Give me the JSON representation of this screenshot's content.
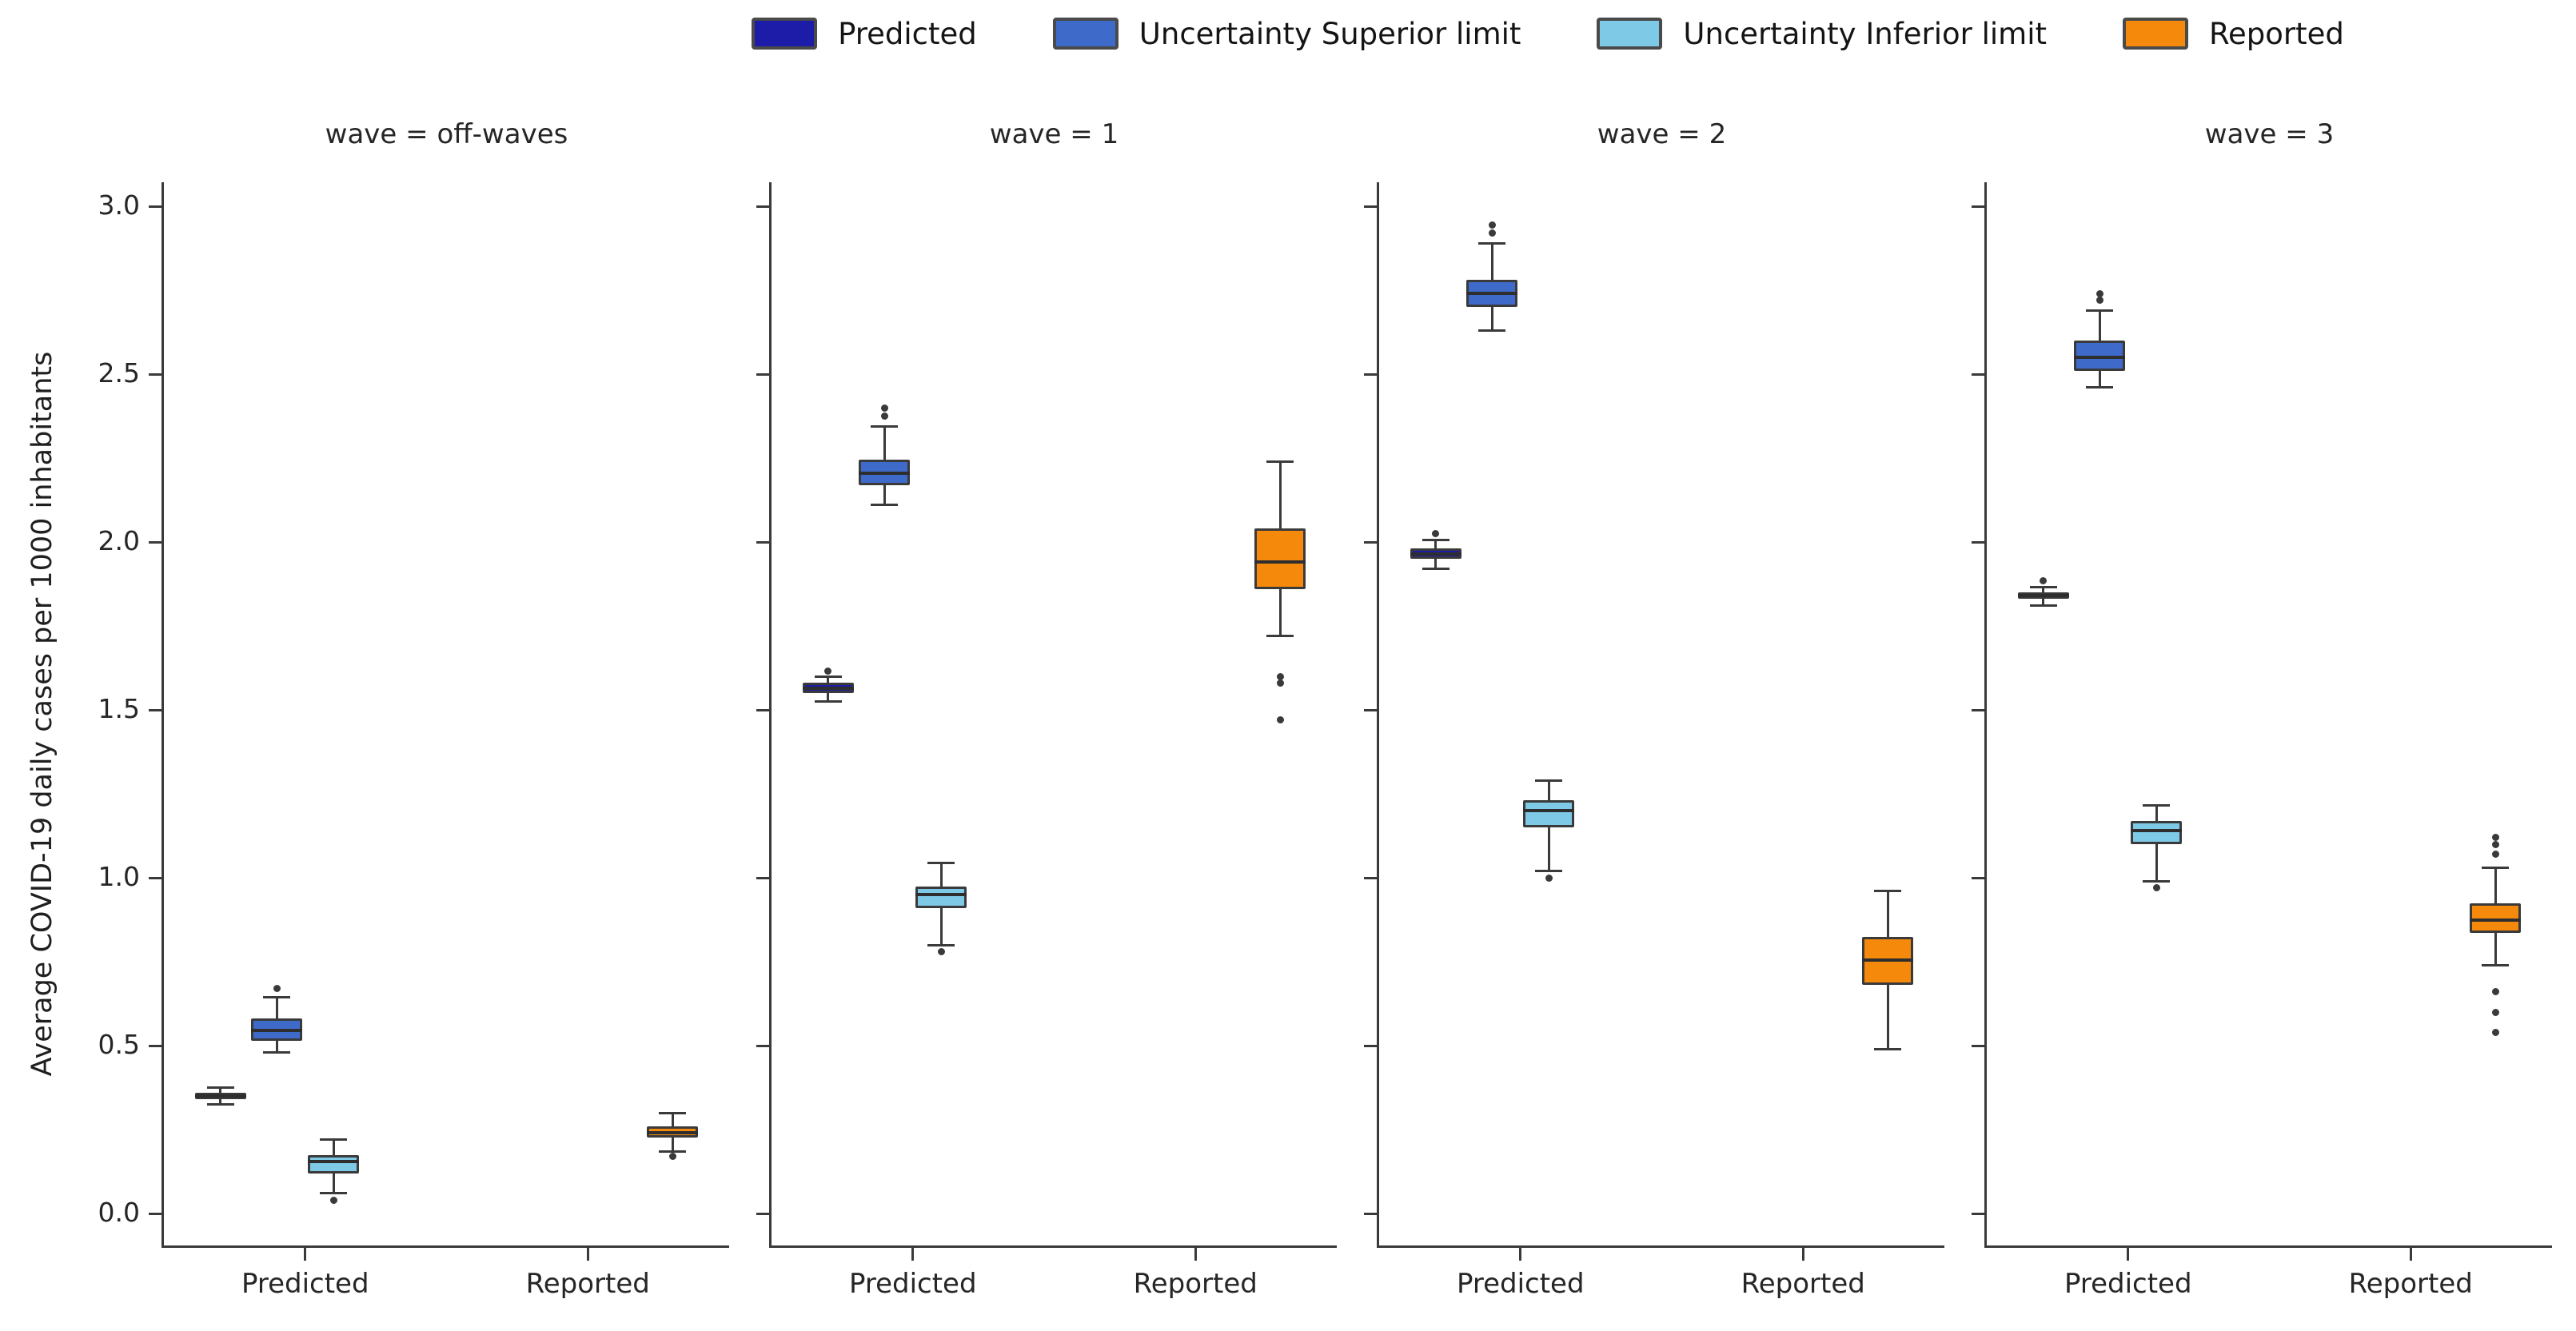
{
  "figure": {
    "y_axis": {
      "label": "Average COVID-19 daily cases per 1000 inhabitants",
      "ticks": [
        "3.0",
        "2.5",
        "2.0",
        "1.5",
        "1.0",
        "0.5",
        "0.0"
      ],
      "tick_values": [
        3.0,
        2.5,
        2.0,
        1.5,
        1.0,
        0.5,
        0.0
      ],
      "ylim": [
        -0.095,
        3.075
      ]
    },
    "x_categories": [
      "Predicted",
      "Reported"
    ],
    "legend": [
      {
        "label": "Predicted",
        "color": "#1c1ca8"
      },
      {
        "label": "Uncertainty Superior limit",
        "color": "#3e6ac9"
      },
      {
        "label": "Uncertainty Inferior limit",
        "color": "#7ec9e6"
      },
      {
        "label": "Reported",
        "color": "#f5890b"
      }
    ],
    "edge_color": "#3a3a3a"
  },
  "chart_data": {
    "type": "boxplot",
    "layout": "4 facets sharing y-axis, grouped by x category with hue dodge",
    "facets": [
      {
        "title": "wave = off-waves",
        "boxes": [
          {
            "series": "Predicted",
            "category": "Predicted",
            "whislo": 0.325,
            "q1": 0.34,
            "med": 0.35,
            "q3": 0.36,
            "whishi": 0.375,
            "outliers": []
          },
          {
            "series": "Uncertainty Superior limit",
            "category": "Predicted",
            "whislo": 0.48,
            "q1": 0.515,
            "med": 0.545,
            "q3": 0.58,
            "whishi": 0.645,
            "outliers": [
              0.67
            ]
          },
          {
            "series": "Uncertainty Inferior limit",
            "category": "Predicted",
            "whislo": 0.06,
            "q1": 0.12,
            "med": 0.155,
            "q3": 0.175,
            "whishi": 0.22,
            "outliers": [
              0.04
            ]
          },
          {
            "series": "Reported",
            "category": "Reported",
            "whislo": 0.185,
            "q1": 0.225,
            "med": 0.24,
            "q3": 0.26,
            "whishi": 0.3,
            "outliers": [
              0.17
            ]
          }
        ]
      },
      {
        "title": "wave = 1",
        "boxes": [
          {
            "series": "Predicted",
            "category": "Predicted",
            "whislo": 1.525,
            "q1": 1.55,
            "med": 1.565,
            "q3": 1.58,
            "whishi": 1.6,
            "outliers": [
              1.615
            ]
          },
          {
            "series": "Uncertainty Superior limit",
            "category": "Predicted",
            "whislo": 2.11,
            "q1": 2.17,
            "med": 2.205,
            "q3": 2.245,
            "whishi": 2.345,
            "outliers": [
              2.375,
              2.4
            ]
          },
          {
            "series": "Uncertainty Inferior limit",
            "category": "Predicted",
            "whislo": 0.8,
            "q1": 0.91,
            "med": 0.95,
            "q3": 0.975,
            "whishi": 1.045,
            "outliers": [
              0.78
            ]
          },
          {
            "series": "Reported",
            "category": "Reported",
            "whislo": 1.72,
            "q1": 1.86,
            "med": 1.94,
            "q3": 2.04,
            "whishi": 2.24,
            "outliers": [
              1.6,
              1.58,
              1.47
            ]
          }
        ]
      },
      {
        "title": "wave = 2",
        "boxes": [
          {
            "series": "Predicted",
            "category": "Predicted",
            "whislo": 1.92,
            "q1": 1.95,
            "med": 1.965,
            "q3": 1.98,
            "whishi": 2.005,
            "outliers": [
              2.025
            ]
          },
          {
            "series": "Uncertainty Superior limit",
            "category": "Predicted",
            "whislo": 2.63,
            "q1": 2.7,
            "med": 2.74,
            "q3": 2.78,
            "whishi": 2.89,
            "outliers": [
              2.92,
              2.945
            ]
          },
          {
            "series": "Uncertainty Inferior limit",
            "category": "Predicted",
            "whislo": 1.02,
            "q1": 1.15,
            "med": 1.2,
            "q3": 1.23,
            "whishi": 1.29,
            "outliers": [
              1.0
            ]
          },
          {
            "series": "Reported",
            "category": "Reported",
            "whislo": 0.49,
            "q1": 0.68,
            "med": 0.755,
            "q3": 0.825,
            "whishi": 0.96,
            "outliers": []
          }
        ]
      },
      {
        "title": "wave = 3",
        "boxes": [
          {
            "series": "Predicted",
            "category": "Predicted",
            "whislo": 1.81,
            "q1": 1.83,
            "med": 1.84,
            "q3": 1.85,
            "whishi": 1.865,
            "outliers": [
              1.885
            ]
          },
          {
            "series": "Uncertainty Superior limit",
            "category": "Predicted",
            "whislo": 2.46,
            "q1": 2.51,
            "med": 2.55,
            "q3": 2.6,
            "whishi": 2.69,
            "outliers": [
              2.72,
              2.74
            ]
          },
          {
            "series": "Uncertainty Inferior limit",
            "category": "Predicted",
            "whislo": 0.99,
            "q1": 1.1,
            "med": 1.14,
            "q3": 1.17,
            "whishi": 1.215,
            "outliers": [
              0.97
            ]
          },
          {
            "series": "Reported",
            "category": "Reported",
            "whislo": 0.74,
            "q1": 0.835,
            "med": 0.875,
            "q3": 0.925,
            "whishi": 1.03,
            "outliers": [
              1.12,
              1.1,
              1.07,
              0.66,
              0.6,
              0.54
            ]
          }
        ]
      }
    ]
  }
}
